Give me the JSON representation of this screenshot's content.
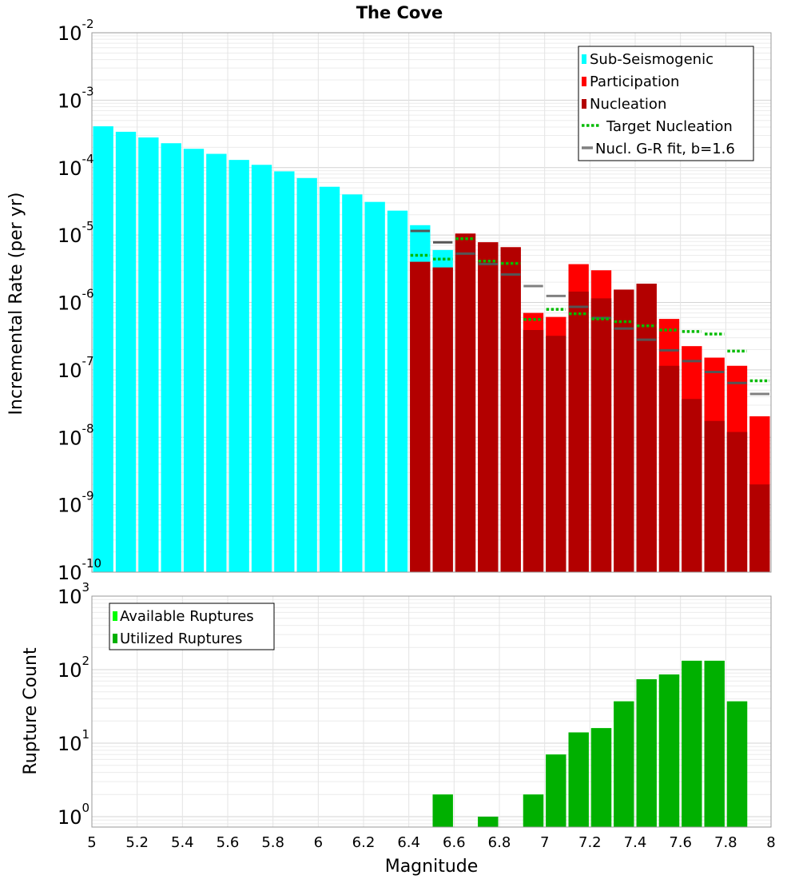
{
  "chart_data": [
    {
      "type": "bar",
      "scale": "log",
      "title": "The Cove",
      "xlabel": "",
      "ylabel": "Incremental Rate (per yr)",
      "xlim": [
        5,
        8
      ],
      "ylim_exp": [
        -10,
        -2
      ],
      "bin_width": 0.1,
      "series": [
        {
          "name": "Sub-Seismogenic",
          "color": "#00ffff",
          "x": [
            5.05,
            5.15,
            5.25,
            5.35,
            5.45,
            5.55,
            5.65,
            5.75,
            5.85,
            5.95,
            6.05,
            6.15,
            6.25,
            6.35,
            6.45,
            6.55
          ],
          "values": [
            0.00041,
            0.00034,
            0.00028,
            0.00023,
            0.00019,
            0.00016,
            0.00013,
            0.00011,
            8.8e-05,
            7e-05,
            5.2e-05,
            4e-05,
            3.1e-05,
            2.3e-05,
            1.4e-05,
            6e-06
          ]
        },
        {
          "name": "Participation",
          "color": "#ff0000",
          "x": [
            6.45,
            6.55,
            6.65,
            6.75,
            6.85,
            6.95,
            7.05,
            7.15,
            7.25,
            7.35,
            7.45,
            7.55,
            7.65,
            7.75,
            7.85,
            7.95
          ],
          "values": [
            4e-06,
            3.3e-06,
            1.05e-05,
            7.8e-06,
            6.6e-06,
            7e-07,
            6.1e-07,
            3.7e-06,
            3e-06,
            1.55e-06,
            1.9e-06,
            5.7e-07,
            2.25e-07,
            1.52e-07,
            1.15e-07,
            2.05e-08
          ]
        },
        {
          "name": "Nucleation",
          "color": "#b30000",
          "x": [
            6.45,
            6.55,
            6.65,
            6.75,
            6.85,
            6.95,
            7.05,
            7.15,
            7.25,
            7.35,
            7.45,
            7.55,
            7.65,
            7.75,
            7.85,
            7.95
          ],
          "values": [
            4e-06,
            3.3e-06,
            1.05e-05,
            7.8e-06,
            6.6e-06,
            3.9e-07,
            3.2e-07,
            1.45e-06,
            1.15e-06,
            1.55e-06,
            1.9e-06,
            1.15e-07,
            3.7e-08,
            1.75e-08,
            1.2e-08,
            2e-09
          ]
        },
        {
          "name": "Target Nucleation",
          "color": "#00bb00",
          "style": "dotted",
          "x": [
            6.45,
            6.55,
            6.65,
            6.75,
            6.85,
            6.95,
            7.05,
            7.15,
            7.25,
            7.35,
            7.45,
            7.55,
            7.65,
            7.75,
            7.85,
            7.95
          ],
          "values": [
            5e-06,
            4.4e-06,
            8.8e-06,
            4.1e-06,
            3.8e-06,
            5.6e-07,
            7.9e-07,
            6.8e-07,
            5.7e-07,
            5.2e-07,
            4.5e-07,
            3.9e-07,
            3.7e-07,
            3.4e-07,
            1.9e-07,
            6.9e-08
          ]
        },
        {
          "name": "Nucl. G-R fit, b=1.6",
          "color": "#808080",
          "x": [
            6.45,
            6.55,
            6.65,
            6.75,
            6.85,
            6.95,
            7.05,
            7.15,
            7.25,
            7.35,
            7.45,
            7.55,
            7.65,
            7.75,
            7.85,
            7.95
          ],
          "values": [
            1.15e-05,
            7.8e-06,
            5.3e-06,
            3.7e-06,
            2.6e-06,
            1.75e-06,
            1.25e-06,
            8.6e-07,
            5.9e-07,
            4.1e-07,
            2.8e-07,
            1.95e-07,
            1.35e-07,
            9.3e-08,
            6.4e-08,
            4.4e-08
          ]
        }
      ]
    },
    {
      "type": "bar",
      "scale": "log",
      "title": "",
      "xlabel": "Magnitude",
      "ylabel": "Rupture Count",
      "xlim": [
        5,
        8
      ],
      "ylim_exp": [
        0,
        3
      ],
      "y_axis_min": 0.8,
      "bin_width": 0.1,
      "x_ticks": [
        "5",
        "5.2",
        "5.4",
        "5.6",
        "5.8",
        "6",
        "6.2",
        "6.4",
        "6.6",
        "6.8",
        "7",
        "7.2",
        "7.4",
        "7.6",
        "7.8",
        "8"
      ],
      "series": [
        {
          "name": "Available Ruptures",
          "color": "#00ff00",
          "x": [
            6.55,
            6.75,
            6.95,
            7.05,
            7.15,
            7.25,
            7.35,
            7.45,
            7.55,
            7.65,
            7.75,
            7.85
          ],
          "values": [
            2,
            1,
            2,
            7,
            14,
            16,
            37,
            74,
            86,
            132,
            132,
            37
          ]
        },
        {
          "name": "Utilized Ruptures",
          "color": "#00b000",
          "x": [
            6.55,
            6.75,
            6.95,
            7.05,
            7.15,
            7.25,
            7.35,
            7.45,
            7.55,
            7.65,
            7.75,
            7.85
          ],
          "values": [
            2,
            1,
            2,
            7,
            14,
            16,
            37,
            74,
            86,
            132,
            132,
            37
          ]
        }
      ]
    }
  ]
}
